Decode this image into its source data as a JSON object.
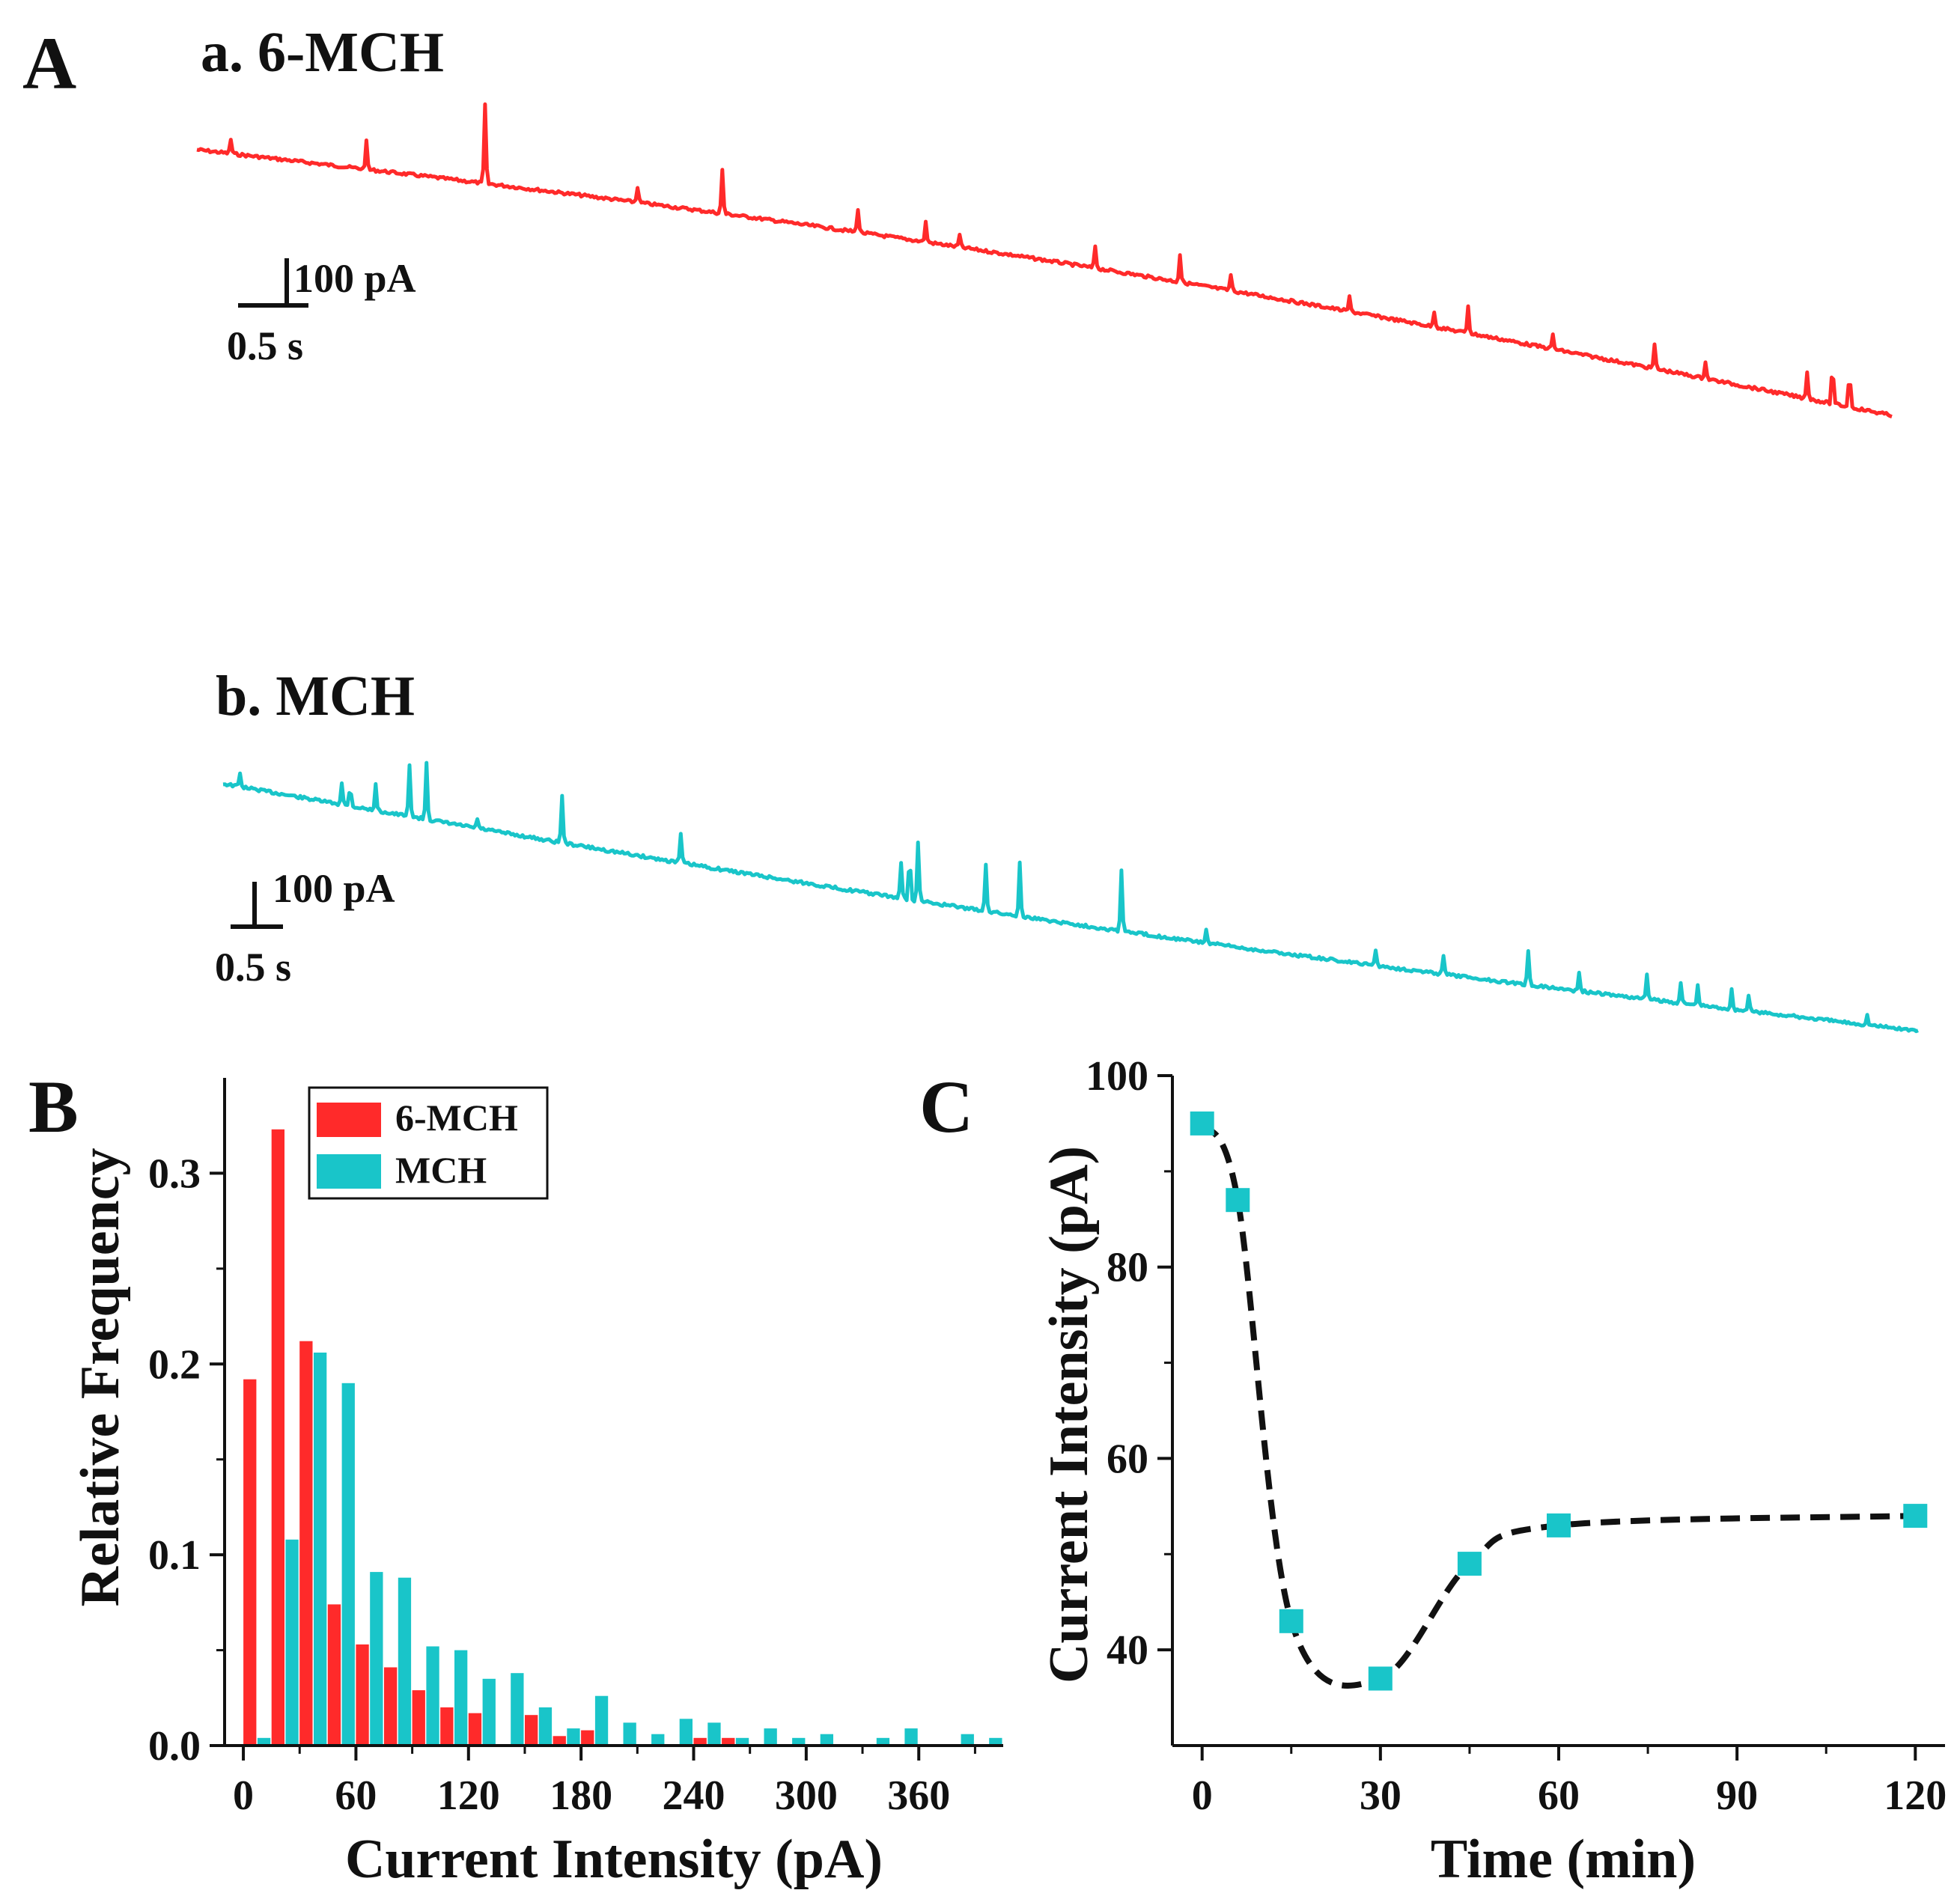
{
  "panels": {
    "a_letter": "A",
    "b_letter": "B",
    "c_letter": "C"
  },
  "colors": {
    "red": "#ff2a2a",
    "cyan": "#19c5c9",
    "black": "#111111"
  },
  "traces": [
    {
      "title": "a. 6-MCH",
      "color": "#ff2a2a",
      "scale_current": "100 pA",
      "scale_time": "0.5 s",
      "spike_positions": [
        0.02,
        0.1,
        0.17,
        0.26,
        0.31,
        0.43,
        0.39,
        0.45,
        0.53,
        0.58,
        0.61,
        0.68,
        0.73,
        0.75,
        0.8,
        0.86,
        0.89,
        0.95,
        0.965,
        0.975
      ],
      "spike_heights": [
        0.18,
        0.35,
        1.0,
        0.2,
        0.55,
        0.25,
        0.3,
        0.15,
        0.28,
        0.35,
        0.2,
        0.18,
        0.2,
        0.35,
        0.18,
        0.3,
        0.22,
        0.35,
        0.55,
        0.5
      ]
    },
    {
      "title": "b. MCH",
      "color": "#19c5c9",
      "scale_current": "100 pA",
      "scale_time": "0.5 s",
      "spike_positions": [
        0.01,
        0.07,
        0.075,
        0.09,
        0.11,
        0.12,
        0.15,
        0.2,
        0.27,
        0.4,
        0.405,
        0.41,
        0.45,
        0.47,
        0.53,
        0.58,
        0.68,
        0.72,
        0.77,
        0.8,
        0.84,
        0.86,
        0.87,
        0.89,
        0.9,
        0.97
      ],
      "spike_heights": [
        0.2,
        0.35,
        0.35,
        0.4,
        0.8,
        0.9,
        0.15,
        0.75,
        0.45,
        0.55,
        0.75,
        0.9,
        0.75,
        0.85,
        0.95,
        0.2,
        0.25,
        0.3,
        0.55,
        0.3,
        0.4,
        0.3,
        0.3,
        0.3,
        0.25,
        0.15
      ]
    }
  ],
  "chart_data": [
    {
      "type": "bar",
      "title": "",
      "xlabel": "Current Intensity (pA)",
      "ylabel": "Relative Frequency",
      "xlim": [
        -10,
        405
      ],
      "ylim": [
        0,
        0.35
      ],
      "xticks": [
        0,
        60,
        120,
        180,
        240,
        300,
        360
      ],
      "yticks": [
        0.0,
        0.1,
        0.2,
        0.3
      ],
      "ytick_labels": [
        "0.0",
        "0.1",
        "0.2",
        "0.3"
      ],
      "bin_width": 15,
      "legend": {
        "placement": "top-left"
      },
      "series": [
        {
          "name": "6-MCH",
          "color": "#ff2a2a",
          "x": [
            7.5,
            22.5,
            37.5,
            52.5,
            67.5,
            82.5,
            97.5,
            112.5,
            127.5,
            142.5,
            157.5,
            172.5,
            187.5,
            202.5,
            217.5,
            232.5,
            247.5,
            262.5
          ],
          "values": [
            0.192,
            0.323,
            0.212,
            0.074,
            0.053,
            0.041,
            0.029,
            0.02,
            0.017,
            0.0,
            0.016,
            0.005,
            0.008,
            0.0,
            0.0,
            0.0,
            0.004,
            0.004
          ]
        },
        {
          "name": "MCH",
          "color": "#19c5c9",
          "x": [
            7.5,
            22.5,
            37.5,
            52.5,
            67.5,
            82.5,
            97.5,
            112.5,
            127.5,
            142.5,
            157.5,
            172.5,
            187.5,
            202.5,
            217.5,
            232.5,
            247.5,
            262.5,
            277.5,
            292.5,
            307.5,
            322.5,
            337.5,
            352.5,
            367.5,
            382.5,
            397.5
          ],
          "values": [
            0.004,
            0.108,
            0.206,
            0.19,
            0.091,
            0.088,
            0.052,
            0.05,
            0.035,
            0.038,
            0.02,
            0.009,
            0.026,
            0.012,
            0.006,
            0.014,
            0.012,
            0.004,
            0.009,
            0.004,
            0.006,
            0.0,
            0.004,
            0.009,
            0.0,
            0.006,
            0.004
          ]
        }
      ]
    },
    {
      "type": "line",
      "title": "",
      "xlabel": "Time (min)",
      "ylabel": "Current Intensity (pA)",
      "xlim": [
        -5,
        125
      ],
      "ylim": [
        30,
        100
      ],
      "xticks": [
        0,
        30,
        60,
        90,
        120
      ],
      "yticks": [
        40,
        60,
        80,
        100
      ],
      "line_style": "dashed",
      "marker": "square",
      "series": [
        {
          "name": "Current Intensity",
          "color": "#19c5c9",
          "line_color": "#111111",
          "x": [
            0,
            6,
            15,
            30,
            45,
            60,
            120
          ],
          "values": [
            95,
            87,
            43,
            37,
            49,
            53,
            54
          ]
        }
      ]
    }
  ]
}
